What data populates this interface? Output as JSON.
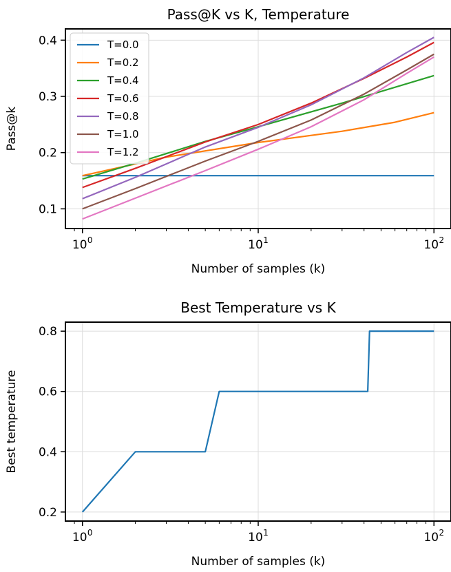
{
  "chart_data": [
    {
      "type": "line",
      "title": "Pass@K vs K, Temperature",
      "xlabel": "Number of samples (k)",
      "ylabel": "Pass@k",
      "xscale": "log",
      "xlim": [
        0.8,
        125
      ],
      "ylim": [
        0.065,
        0.42
      ],
      "xticks": [
        {
          "value": 1,
          "base": "10",
          "exp": "0"
        },
        {
          "value": 10,
          "base": "10",
          "exp": "1"
        },
        {
          "value": 100,
          "base": "10",
          "exp": "2"
        }
      ],
      "yticks": [
        {
          "value": 0.1,
          "label": "0.1"
        },
        {
          "value": 0.2,
          "label": "0.2"
        },
        {
          "value": 0.3,
          "label": "0.3"
        },
        {
          "value": 0.4,
          "label": "0.4"
        }
      ],
      "grid": true,
      "legend_position": "top-left",
      "series": [
        {
          "name": "T=0.0",
          "color": "#1f77b4",
          "x": [
            1,
            100
          ],
          "y": [
            0.159,
            0.159
          ]
        },
        {
          "name": "T=0.2",
          "color": "#ff7f0e",
          "x": [
            1,
            3,
            10,
            30,
            60,
            100
          ],
          "y": [
            0.159,
            0.192,
            0.218,
            0.238,
            0.254,
            0.271
          ]
        },
        {
          "name": "T=0.4",
          "color": "#2ca02c",
          "x": [
            1,
            2,
            5,
            10,
            30,
            100
          ],
          "y": [
            0.153,
            0.181,
            0.22,
            0.246,
            0.288,
            0.337
          ]
        },
        {
          "name": "T=0.6",
          "color": "#d62728",
          "x": [
            1,
            2,
            5,
            10,
            20,
            40,
            70,
            100
          ],
          "y": [
            0.138,
            0.172,
            0.219,
            0.25,
            0.288,
            0.332,
            0.37,
            0.396
          ]
        },
        {
          "name": "T=0.8",
          "color": "#9467bd",
          "x": [
            1,
            2,
            5,
            10,
            20,
            40,
            70,
            100
          ],
          "y": [
            0.118,
            0.156,
            0.21,
            0.245,
            0.285,
            0.333,
            0.378,
            0.405
          ]
        },
        {
          "name": "T=1.0",
          "color": "#8c564b",
          "x": [
            1,
            2,
            5,
            10,
            20,
            40,
            70,
            100
          ],
          "y": [
            0.1,
            0.136,
            0.185,
            0.22,
            0.258,
            0.304,
            0.347,
            0.375
          ]
        },
        {
          "name": "T=1.2",
          "color": "#e377c2",
          "x": [
            1,
            2,
            5,
            10,
            20,
            40,
            70,
            100
          ],
          "y": [
            0.082,
            0.119,
            0.168,
            0.206,
            0.246,
            0.294,
            0.341,
            0.37
          ]
        }
      ]
    },
    {
      "type": "line",
      "title": "Best Temperature vs K",
      "xlabel": "Number of samples (k)",
      "ylabel": "Best temperature",
      "xscale": "log",
      "xlim": [
        0.8,
        125
      ],
      "ylim": [
        0.17,
        0.83
      ],
      "xticks": [
        {
          "value": 1,
          "base": "10",
          "exp": "0"
        },
        {
          "value": 10,
          "base": "10",
          "exp": "1"
        },
        {
          "value": 100,
          "base": "10",
          "exp": "2"
        }
      ],
      "yticks": [
        {
          "value": 0.2,
          "label": "0.2"
        },
        {
          "value": 0.4,
          "label": "0.4"
        },
        {
          "value": 0.6,
          "label": "0.6"
        },
        {
          "value": 0.8,
          "label": "0.8"
        }
      ],
      "grid": true,
      "series": [
        {
          "name": "Best temperature",
          "color": "#1f77b4",
          "x": [
            1,
            2,
            5,
            6,
            42,
            43,
            100
          ],
          "y": [
            0.2,
            0.4,
            0.4,
            0.6,
            0.6,
            0.8,
            0.8
          ]
        }
      ]
    }
  ]
}
